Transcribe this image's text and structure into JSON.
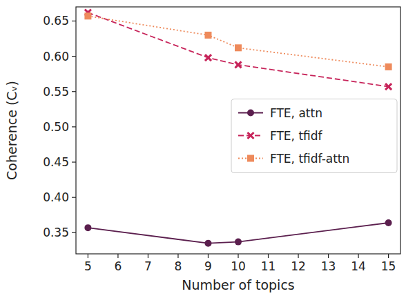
{
  "chart_data": {
    "type": "line",
    "x_label": "Number of topics",
    "y_label": "Coherence (Cᵥ)",
    "x": [
      5,
      9,
      10,
      15
    ],
    "series": [
      {
        "name": "FTE, attn",
        "color": "#5b1f4e",
        "marker": "circle",
        "line_style": "solid",
        "values": [
          0.357,
          0.335,
          0.337,
          0.364
        ]
      },
      {
        "name": "FTE, tfidf",
        "color": "#c7245a",
        "marker": "x",
        "line_style": "dashed",
        "values": [
          0.662,
          0.598,
          0.588,
          0.557
        ]
      },
      {
        "name": "FTE, tfidf-attn",
        "color": "#ee8a5b",
        "marker": "square",
        "line_style": "dotted",
        "values": [
          0.657,
          0.63,
          0.612,
          0.585
        ]
      }
    ],
    "xlim": [
      4.6,
      15.4
    ],
    "xticks": [
      5,
      6,
      7,
      8,
      9,
      10,
      11,
      12,
      13,
      14,
      15
    ],
    "ylim": [
      0.32,
      0.67
    ],
    "yticks": [
      0.35,
      {
        "value": 0.4,
        "label": "0.40"
      },
      0.45,
      {
        "value": 0.5,
        "label": "0.50"
      },
      0.55,
      {
        "value": 0.6,
        "label": "0.60"
      },
      0.65
    ],
    "grid": false,
    "legend": "center right"
  }
}
